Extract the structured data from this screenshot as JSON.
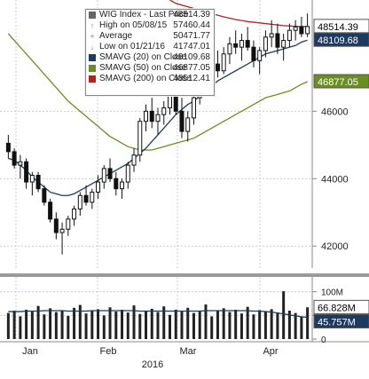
{
  "chart_data": [
    {
      "type": "candlestick",
      "x_ticks": [
        "Jan",
        "Feb",
        "Mar",
        "Apr"
      ],
      "x_year": "2016",
      "y_ticks": [
        42000,
        44000,
        46000
      ],
      "ylim": [
        41400,
        49300
      ],
      "grid": true,
      "legend_position": "top-left",
      "legend": {
        "title": "WIG Index - Last Price",
        "title_value": "48514.39",
        "rows": [
          {
            "label": "High on 05/08/15",
            "value": "57460.44",
            "glyph": "up-arrow"
          },
          {
            "label": "Average",
            "value": "50471.77",
            "glyph": "plus"
          },
          {
            "label": "Low on 01/21/16",
            "value": "41747.01",
            "glyph": "down-arrow"
          },
          {
            "label": "SMAVG (20) on Close",
            "value": "48109.68",
            "color": "#1f3a5f"
          },
          {
            "label": "SMAVG (50) on Close",
            "value": "46877.05",
            "color": "#6b8e23"
          },
          {
            "label": "SMAVG (200) on Close",
            "value": "48512.41",
            "color": "#b22222"
          }
        ]
      },
      "badges": [
        {
          "value": "48514.39",
          "price": 48514.39,
          "bg": "#ffffff",
          "fg": "#000000"
        },
        {
          "value": "48109.68",
          "price": 48109.68,
          "bg": "#1f3a5f",
          "fg": "#ffffff"
        },
        {
          "value": "46877.05",
          "price": 46877.05,
          "bg": "#6b8e23",
          "fg": "#ffffff"
        }
      ],
      "candles": [
        [
          45050,
          45300,
          44600,
          44800
        ],
        [
          44800,
          44900,
          44300,
          44400
        ],
        [
          44400,
          44700,
          44000,
          44500
        ],
        [
          44500,
          44600,
          43700,
          43900
        ],
        [
          43900,
          44200,
          43500,
          44100
        ],
        [
          44100,
          44200,
          43600,
          43700
        ],
        [
          43700,
          43800,
          43200,
          43300
        ],
        [
          43300,
          43400,
          42700,
          42800
        ],
        [
          42800,
          43000,
          42200,
          42400
        ],
        [
          42400,
          42700,
          41750,
          42500
        ],
        [
          42500,
          42900,
          42300,
          42800
        ],
        [
          42800,
          43200,
          42600,
          43100
        ],
        [
          43100,
          43600,
          42900,
          43500
        ],
        [
          43500,
          43800,
          43200,
          43300
        ],
        [
          43300,
          43700,
          43100,
          43600
        ],
        [
          43600,
          44100,
          43400,
          43900
        ],
        [
          43900,
          44400,
          43700,
          44300
        ],
        [
          44300,
          44600,
          43900,
          44000
        ],
        [
          44000,
          44200,
          43500,
          43700
        ],
        [
          43700,
          44000,
          43400,
          43900
        ],
        [
          43900,
          44500,
          43700,
          44400
        ],
        [
          44400,
          44900,
          44200,
          44700
        ],
        [
          44700,
          45800,
          44500,
          45700
        ],
        [
          45700,
          46200,
          45400,
          46000
        ],
        [
          46000,
          46400,
          45500,
          45700
        ],
        [
          45700,
          46100,
          45300,
          45900
        ],
        [
          45900,
          46300,
          45600,
          46100
        ],
        [
          46100,
          46700,
          45900,
          46500
        ],
        [
          46500,
          46800,
          45900,
          46000
        ],
        [
          46000,
          46400,
          45200,
          45400
        ],
        [
          45400,
          46000,
          45100,
          45800
        ],
        [
          45800,
          46500,
          45600,
          46400
        ],
        [
          46400,
          47000,
          46200,
          46800
        ],
        [
          46800,
          47300,
          46500,
          47100
        ],
        [
          47100,
          47600,
          46900,
          47400
        ],
        [
          47400,
          47800,
          47000,
          47200
        ],
        [
          47200,
          47900,
          47100,
          47700
        ],
        [
          47700,
          48200,
          47400,
          48000
        ],
        [
          48000,
          48400,
          47700,
          47900
        ],
        [
          47900,
          48300,
          47500,
          48100
        ],
        [
          48100,
          48500,
          47800,
          47900
        ],
        [
          47900,
          48100,
          47300,
          47500
        ],
        [
          47500,
          47900,
          47100,
          47800
        ],
        [
          47800,
          48400,
          47600,
          48200
        ],
        [
          48200,
          48700,
          47900,
          48300
        ],
        [
          48300,
          48600,
          47700,
          47900
        ],
        [
          47900,
          48300,
          47500,
          48100
        ],
        [
          48100,
          48600,
          47900,
          48400
        ],
        [
          48400,
          48700,
          48100,
          48500
        ],
        [
          48500,
          48800,
          48200,
          48300
        ],
        [
          48300,
          48900,
          48200,
          48514
        ]
      ],
      "sma20": [
        44600,
        44550,
        44400,
        44250,
        44050,
        43900,
        43750,
        43600,
        43550,
        43500,
        43500,
        43550,
        43650,
        43750,
        43850,
        43950,
        44050,
        44150,
        44250,
        44350,
        44450,
        44600,
        44750,
        44900,
        45100,
        45300,
        45500,
        45700,
        45900,
        46050,
        46200,
        46300,
        46450,
        46600,
        46750,
        46900,
        47000,
        47100,
        47200,
        47300,
        47400,
        47500,
        47600,
        47700,
        47750,
        47800,
        47850,
        47900,
        47950,
        48050,
        48110
      ],
      "sma50": [
        48300,
        48100,
        47900,
        47700,
        47500,
        47300,
        47100,
        46900,
        46700,
        46500,
        46300,
        46150,
        46000,
        45850,
        45700,
        45550,
        45400,
        45250,
        45150,
        45050,
        44950,
        44900,
        44850,
        44850,
        44850,
        44900,
        44950,
        45000,
        45050,
        45100,
        45150,
        45200,
        45300,
        45400,
        45500,
        45600,
        45700,
        45800,
        45900,
        46000,
        46100,
        46200,
        46300,
        46400,
        46450,
        46500,
        46550,
        46600,
        46700,
        46800,
        46877
      ],
      "sma200": [
        49300,
        49200,
        49150,
        49100,
        49050,
        49000,
        48950,
        48900,
        48850,
        48800,
        48760,
        48720,
        48690,
        48660,
        48640,
        48620,
        48600,
        48580,
        48560,
        48540,
        48530,
        48520,
        48515,
        48512
      ]
    },
    {
      "type": "bar",
      "y_ticks": [
        "100M",
        "50M",
        "0"
      ],
      "ylim": [
        0,
        120
      ],
      "badge": {
        "value": "66.828M",
        "bg": "#ffffff",
        "fg": "#000000"
      },
      "badge2": {
        "value": "45.757M",
        "bg": "#1f3a5f",
        "fg": "#ffffff"
      },
      "volumes": [
        55,
        60,
        48,
        62,
        58,
        70,
        52,
        65,
        57,
        61,
        49,
        66,
        72,
        54,
        59,
        63,
        50,
        67,
        58,
        62,
        56,
        71,
        53,
        60,
        64,
        57,
        69,
        51,
        62,
        58,
        66,
        55,
        60,
        73,
        48,
        59,
        65,
        57,
        62,
        54,
        68,
        52,
        61,
        58,
        63,
        56,
        101,
        60,
        55,
        48,
        67
      ],
      "avg": [
        58,
        58,
        58,
        59,
        59,
        59,
        60,
        60,
        60,
        60,
        59,
        59,
        59,
        59,
        60,
        60,
        60,
        60,
        60,
        60,
        60,
        60,
        59,
        59,
        59,
        59,
        59,
        59,
        59,
        59,
        59,
        59,
        59,
        60,
        60,
        60,
        60,
        60,
        60,
        60,
        60,
        59,
        59,
        58,
        57,
        55,
        53,
        51,
        49,
        47,
        46
      ]
    }
  ]
}
